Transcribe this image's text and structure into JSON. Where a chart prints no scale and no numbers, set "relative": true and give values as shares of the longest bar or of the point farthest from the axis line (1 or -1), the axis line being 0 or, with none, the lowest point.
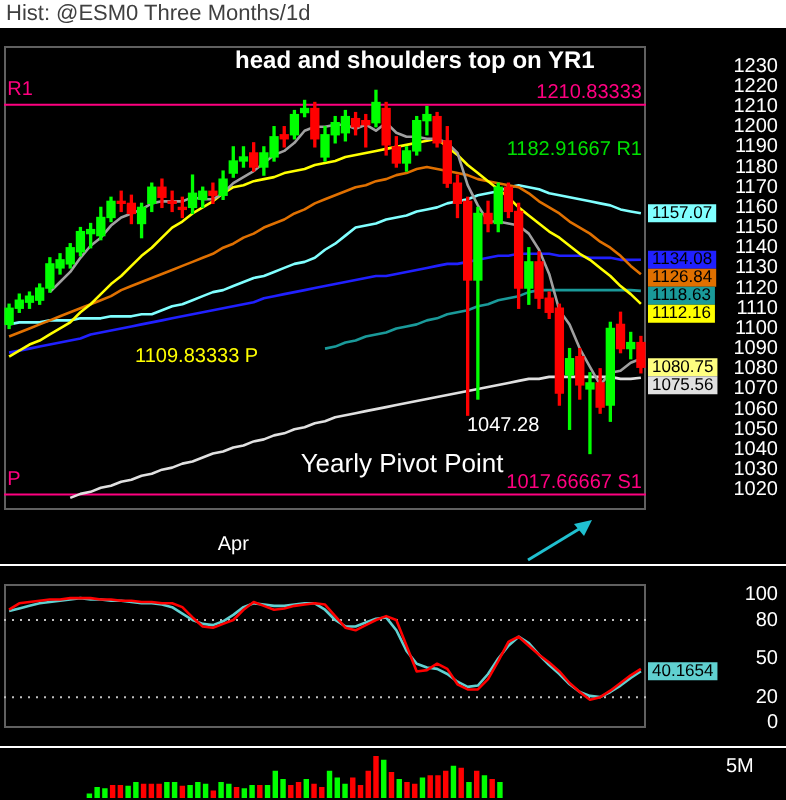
{
  "chart_data": [
    {
      "type": "candlestick",
      "title": "Hist: @ESM0 Three Months/1d",
      "categories": [
        null,
        null,
        null,
        null,
        null,
        null,
        null,
        null,
        null,
        null,
        null,
        null,
        null,
        null,
        null,
        null,
        null,
        null,
        null,
        null,
        null,
        null,
        "Apr",
        null,
        null,
        null,
        null,
        null,
        null,
        null,
        null,
        null,
        null,
        null,
        null,
        null,
        null,
        null,
        null,
        null,
        null,
        null,
        null,
        null,
        null,
        null,
        null,
        null,
        null,
        null,
        null,
        null,
        null,
        null,
        null,
        null,
        null,
        null,
        null,
        null,
        null,
        null,
        null
      ],
      "ohlc": [
        [
          1102,
          1112,
          1100,
          1110
        ],
        [
          1110,
          1117,
          1108,
          1114
        ],
        [
          1113,
          1118,
          1110,
          1116
        ],
        [
          1114,
          1122,
          1112,
          1120
        ],
        [
          1120,
          1135,
          1118,
          1132
        ],
        [
          1130,
          1137,
          1127,
          1134
        ],
        [
          1132,
          1142,
          1130,
          1140
        ],
        [
          1138,
          1150,
          1136,
          1148
        ],
        [
          1147,
          1152,
          1140,
          1149
        ],
        [
          1146,
          1160,
          1144,
          1155
        ],
        [
          1155,
          1165,
          1153,
          1163
        ],
        [
          1163,
          1168,
          1158,
          1162
        ],
        [
          1162,
          1166,
          1152,
          1157
        ],
        [
          1152,
          1162,
          1145,
          1160
        ],
        [
          1162,
          1172,
          1158,
          1170
        ],
        [
          1170,
          1174,
          1160,
          1165
        ],
        [
          1163,
          1168,
          1158,
          1162
        ],
        [
          1160,
          1165,
          1155,
          1159
        ],
        [
          1160,
          1176,
          1157,
          1167
        ],
        [
          1164,
          1170,
          1160,
          1168
        ],
        [
          1168,
          1172,
          1162,
          1166
        ],
        [
          1166,
          1178,
          1164,
          1174
        ],
        [
          1177,
          1190,
          1175,
          1183
        ],
        [
          1183,
          1190,
          1180,
          1185
        ],
        [
          1187,
          1192,
          1178,
          1180
        ],
        [
          1180,
          1190,
          1176,
          1187
        ],
        [
          1185,
          1200,
          1183,
          1195
        ],
        [
          1196,
          1200,
          1190,
          1194
        ],
        [
          1196,
          1208,
          1194,
          1206
        ],
        [
          1207,
          1213,
          1205,
          1209
        ],
        [
          1209,
          1212,
          1190,
          1194
        ],
        [
          1185,
          1200,
          1183,
          1196
        ],
        [
          1196,
          1205,
          1192,
          1202
        ],
        [
          1197,
          1208,
          1193,
          1205
        ],
        [
          1204,
          1207,
          1196,
          1200
        ],
        [
          1203,
          1206,
          1190,
          1201
        ],
        [
          1202,
          1218,
          1200,
          1212
        ],
        [
          1209,
          1212,
          1186,
          1191
        ],
        [
          1190,
          1195,
          1180,
          1182
        ],
        [
          1182,
          1190,
          1178,
          1188
        ],
        [
          1188,
          1205,
          1186,
          1203
        ],
        [
          1203,
          1210,
          1196,
          1206
        ],
        [
          1205,
          1207,
          1190,
          1192
        ],
        [
          1193,
          1200,
          1170,
          1172
        ],
        [
          1172,
          1176,
          1155,
          1162
        ],
        [
          1163,
          1165,
          1057,
          1124
        ],
        [
          1124,
          1160,
          1065,
          1157
        ],
        [
          1157,
          1163,
          1148,
          1152
        ],
        [
          1152,
          1172,
          1148,
          1170
        ],
        [
          1170,
          1172,
          1155,
          1158
        ],
        [
          1158,
          1162,
          1110,
          1120
        ],
        [
          1120,
          1140,
          1112,
          1133
        ],
        [
          1133,
          1138,
          1110,
          1115
        ],
        [
          1115,
          1118,
          1105,
          1108
        ],
        [
          1110,
          1112,
          1062,
          1068
        ],
        [
          1077,
          1090,
          1050,
          1085
        ],
        [
          1086,
          1090,
          1065,
          1072
        ],
        [
          1070,
          1078,
          1038,
          1073
        ],
        [
          1073,
          1080,
          1058,
          1061
        ],
        [
          1062,
          1103,
          1054,
          1100
        ],
        [
          1102,
          1108,
          1088,
          1090
        ],
        [
          1090,
          1098,
          1085,
          1093
        ],
        [
          1093,
          1096,
          1078,
          1080.75
        ]
      ],
      "colors": [
        "#00ff00",
        "#00ff00",
        "#00ff00",
        "#00ff00",
        "#00ff00",
        "#00ff00",
        "#00ff00",
        "#00ff00",
        "#00ff00",
        "#00ff00",
        "#00ff00",
        "#ff0000",
        "#ff0000",
        "#00ff00",
        "#00ff00",
        "#ff0000",
        "#ff0000",
        "#ff0000",
        "#00ff00",
        "#00ff00",
        "#ff0000",
        "#00ff00",
        "#00ff00",
        "#00ff00",
        "#ff0000",
        "#00ff00",
        "#00ff00",
        "#ff0000",
        "#00ff00",
        "#00ff00",
        "#ff0000",
        "#00ff00",
        "#00ff00",
        "#00ff00",
        "#ff0000",
        "#ff0000",
        "#00ff00",
        "#ff0000",
        "#ff0000",
        "#00ff00",
        "#00ff00",
        "#00ff00",
        "#ff0000",
        "#ff0000",
        "#ff0000",
        "#ff0000",
        "#00ff00",
        "#ff0000",
        "#00ff00",
        "#ff0000",
        "#ff0000",
        "#00ff00",
        "#ff0000",
        "#ff0000",
        "#ff0000",
        "#00ff00",
        "#ff0000",
        "#00ff00",
        "#ff0000",
        "#00ff00",
        "#ff0000",
        "#00ff00",
        "#ff0000"
      ],
      "series": [
        {
          "type": "line",
          "color": "#a0a0a0",
          "values": [
            null,
            null,
            null,
            null,
            1118,
            1123,
            1128,
            1135,
            1141,
            1145,
            1151,
            1155,
            1157,
            1159,
            1162,
            1163,
            1163,
            1163,
            1165,
            1164,
            1164,
            1167,
            1172,
            1175,
            1178,
            1182,
            1186,
            1188,
            1192,
            1198,
            1200,
            1200,
            1201,
            1201,
            1199,
            1201,
            1198,
            1202,
            1197,
            1195,
            1195,
            1194,
            1194,
            1192,
            1187,
            1171,
            1161,
            1153,
            1153,
            1152,
            1151,
            1147,
            1139,
            1127,
            1109,
            1102,
            1090,
            1081,
            1072,
            1078,
            1079,
            1083,
            1085
          ]
        },
        {
          "type": "line",
          "color": "#ffff00",
          "values": [
            1086,
            1089,
            1092,
            1094,
            1097,
            1100,
            1103,
            1108,
            1112,
            1117,
            1122,
            1126,
            1131,
            1136,
            1140,
            1145,
            1150,
            1153,
            1157,
            1160,
            1163,
            1167,
            1170,
            1171,
            1173,
            1174,
            1175,
            1177,
            1178,
            1179,
            1181,
            1182,
            1183,
            1185,
            1186,
            1187,
            1188,
            1189,
            1190,
            1191,
            1192,
            1193,
            1194,
            1190,
            1186,
            1181,
            1177,
            1173,
            1169,
            1165,
            1160,
            1156,
            1152,
            1148,
            1145,
            1141,
            1137,
            1134,
            1130,
            1126,
            1121,
            1117,
            1112.16
          ],
          "value_labels": [
            null,
            null,
            null,
            null,
            null,
            null,
            null,
            null,
            null,
            null,
            null,
            null,
            null,
            null,
            null,
            null,
            null,
            null,
            null,
            null,
            null,
            null,
            null,
            null,
            null,
            null,
            null,
            null,
            null,
            null,
            null,
            null,
            null,
            null,
            null,
            null,
            null,
            null,
            null,
            null,
            null,
            null,
            null,
            null,
            null,
            null,
            null,
            null,
            null,
            null,
            null,
            null,
            null,
            null,
            null,
            null,
            null,
            null,
            null,
            null,
            null,
            null,
            "1112.16"
          ]
        },
        {
          "type": "line",
          "color": "#e07000",
          "values": [
            1096,
            1098,
            1100,
            1102,
            1104,
            1106,
            1108,
            1110,
            1112,
            1114,
            1116,
            1119,
            1121,
            1123,
            1125,
            1127,
            1129,
            1131,
            1133,
            1135,
            1137,
            1140,
            1142,
            1145,
            1147,
            1150,
            1152,
            1154,
            1157,
            1159,
            1162,
            1164,
            1166,
            1168,
            1170,
            1171,
            1173,
            1174,
            1176,
            1177,
            1179,
            1180,
            1179,
            1178,
            1177,
            1176,
            1174,
            1173,
            1172,
            1171,
            1170,
            1167,
            1163,
            1160,
            1157,
            1153,
            1150,
            1147,
            1143,
            1140,
            1136,
            1131,
            1126.84
          ],
          "value_labels": [
            null,
            null,
            null,
            null,
            null,
            null,
            null,
            null,
            null,
            null,
            null,
            null,
            null,
            null,
            null,
            null,
            null,
            null,
            null,
            null,
            null,
            null,
            null,
            null,
            null,
            null,
            null,
            null,
            null,
            null,
            null,
            null,
            null,
            null,
            null,
            null,
            null,
            null,
            null,
            null,
            null,
            null,
            null,
            null,
            null,
            null,
            null,
            null,
            null,
            null,
            null,
            null,
            null,
            null,
            null,
            null,
            null,
            null,
            null,
            null,
            null,
            null,
            "1126.84"
          ]
        },
        {
          "type": "line",
          "color": "#80ffff",
          "values": [
            1102,
            1103,
            1103,
            1103,
            1104,
            1104,
            1104,
            1105,
            1105,
            1105,
            1106,
            1106,
            1106,
            1107,
            1107,
            1109,
            1111,
            1112,
            1114,
            1116,
            1118,
            1119,
            1121,
            1123,
            1125,
            1126,
            1128,
            1130,
            1132,
            1133,
            1135,
            1139,
            1142,
            1146,
            1150,
            1151,
            1152,
            1154,
            1155,
            1156,
            1158,
            1159,
            1160,
            1162,
            1163,
            1164,
            1166,
            1167,
            1168,
            1170,
            1171,
            1170,
            1169,
            1167,
            1166,
            1165,
            1164,
            1163,
            1162,
            1161,
            1159,
            1158,
            1157.07
          ],
          "value_labels": [
            null,
            null,
            null,
            null,
            null,
            null,
            null,
            null,
            null,
            null,
            null,
            null,
            null,
            null,
            null,
            null,
            null,
            null,
            null,
            null,
            null,
            null,
            null,
            null,
            null,
            null,
            null,
            null,
            null,
            null,
            null,
            null,
            null,
            null,
            null,
            null,
            null,
            null,
            null,
            null,
            null,
            null,
            null,
            null,
            null,
            null,
            null,
            null,
            null,
            null,
            null,
            null,
            null,
            null,
            null,
            null,
            null,
            null,
            null,
            null,
            null,
            null,
            "1157.07"
          ]
        },
        {
          "type": "line",
          "color": "#1a9a9a",
          "values": [
            null,
            null,
            null,
            null,
            null,
            null,
            null,
            null,
            null,
            null,
            null,
            null,
            null,
            null,
            null,
            null,
            null,
            null,
            null,
            null,
            null,
            null,
            null,
            null,
            null,
            null,
            null,
            null,
            null,
            null,
            null,
            1090,
            1091,
            1093,
            1094,
            1096,
            1097,
            1098,
            1100,
            1101,
            1102,
            1104,
            1105,
            1107,
            1108,
            1109,
            1111,
            1112,
            1114,
            1115,
            1116,
            1118,
            1119,
            1119,
            1119,
            1119,
            1119,
            1119,
            1119,
            1119,
            1119,
            1119,
            1118.63
          ],
          "value_labels": [
            null,
            null,
            null,
            null,
            null,
            null,
            null,
            null,
            null,
            null,
            null,
            null,
            null,
            null,
            null,
            null,
            null,
            null,
            null,
            null,
            null,
            null,
            null,
            null,
            null,
            null,
            null,
            null,
            null,
            null,
            null,
            null,
            null,
            null,
            null,
            null,
            null,
            null,
            null,
            null,
            null,
            null,
            null,
            null,
            null,
            null,
            null,
            null,
            null,
            null,
            null,
            null,
            null,
            null,
            null,
            null,
            null,
            null,
            null,
            null,
            null,
            null,
            "1118.63"
          ]
        },
        {
          "type": "line",
          "color": "#2020ff",
          "values": [
            1088,
            1089,
            1090,
            1091,
            1092,
            1093,
            1094,
            1095,
            1097,
            1098,
            1099,
            1100,
            1101,
            1102,
            1103,
            1104,
            1105,
            1106,
            1107,
            1108,
            1109,
            1110,
            1111,
            1112,
            1113,
            1115,
            1116,
            1117,
            1118,
            1119,
            1120,
            1121,
            1122,
            1123,
            1124,
            1125,
            1126,
            1126,
            1127,
            1128,
            1129,
            1130,
            1131,
            1132,
            1132,
            1133,
            1134,
            1135,
            1136,
            1136,
            1137,
            1137,
            1137,
            1137,
            1136,
            1136,
            1136,
            1135,
            1135,
            1135,
            1134,
            1134,
            1134.08
          ],
          "value_labels": [
            null,
            null,
            null,
            null,
            null,
            null,
            null,
            null,
            null,
            null,
            null,
            null,
            null,
            null,
            null,
            null,
            null,
            null,
            null,
            null,
            null,
            null,
            null,
            null,
            null,
            null,
            null,
            null,
            null,
            null,
            null,
            null,
            null,
            null,
            null,
            null,
            null,
            null,
            null,
            null,
            null,
            null,
            null,
            null,
            null,
            null,
            null,
            null,
            null,
            null,
            null,
            null,
            null,
            null,
            null,
            null,
            null,
            null,
            null,
            null,
            null,
            null,
            "1134.08"
          ]
        },
        {
          "type": "line",
          "color": "#e0e0e0",
          "values": [
            null,
            null,
            null,
            null,
            null,
            null,
            1016,
            1018,
            1019,
            1021,
            1022,
            1024,
            1025,
            1027,
            1028,
            1030,
            1031,
            1033,
            1034,
            1036,
            1038,
            1039,
            1041,
            1042,
            1044,
            1045,
            1047,
            1048,
            1050,
            1051,
            1053,
            1054,
            1056,
            1057,
            1058,
            1059,
            1060,
            1061,
            1062,
            1063,
            1064,
            1065,
            1066,
            1067,
            1068,
            1069,
            1070,
            1071,
            1072,
            1073,
            1074,
            1075,
            1075,
            1076,
            1076,
            1076,
            1076,
            1076,
            1076,
            1076,
            1075,
            1075,
            1075.56
          ],
          "value_labels": [
            null,
            null,
            null,
            null,
            null,
            null,
            null,
            null,
            null,
            null,
            null,
            null,
            null,
            null,
            null,
            null,
            null,
            null,
            null,
            null,
            null,
            null,
            null,
            null,
            null,
            null,
            null,
            null,
            null,
            null,
            null,
            null,
            null,
            null,
            null,
            null,
            null,
            null,
            null,
            null,
            null,
            null,
            null,
            null,
            null,
            null,
            null,
            null,
            null,
            null,
            null,
            null,
            null,
            null,
            null,
            null,
            null,
            null,
            null,
            null,
            null,
            null,
            "1075.56"
          ]
        }
      ],
      "ylim": [
        1010,
        1240
      ],
      "yticks": [
        1020,
        1030,
        1040,
        1050,
        1060,
        1070,
        1080,
        1090,
        1100,
        1110,
        1120,
        1130,
        1140,
        1150,
        1160,
        1170,
        1180,
        1190,
        1200,
        1210,
        1220,
        1230
      ],
      "ref_lines": [
        {
          "axis": "y",
          "value": 1210.83333,
          "label": "1210.83333",
          "color": "#ff0080"
        },
        {
          "axis": "y",
          "value": 1017.66667,
          "label": "1017.66667 S1",
          "color": "#ff0080"
        }
      ],
      "annotations": [
        "head and shoulders top on YR1",
        "Yearly Pivot Point",
        "R1",
        "P",
        "1182.91667 R1",
        "1109.83333 P",
        "1047.28",
        "1080.75"
      ]
    },
    {
      "type": "line",
      "tick_labels": "y",
      "categories": [
        null,
        null,
        null,
        null,
        null,
        null,
        null,
        null,
        null,
        null,
        null,
        null,
        null,
        null,
        null,
        null,
        null,
        null,
        null,
        null,
        null,
        null,
        null,
        null,
        null,
        null,
        null,
        null,
        null,
        null,
        null,
        null,
        null,
        null,
        null,
        null,
        null,
        null,
        null,
        null,
        null,
        null,
        null,
        null,
        null,
        null,
        null,
        null,
        null,
        null,
        null,
        null,
        null,
        null,
        null,
        null,
        null,
        null,
        null,
        null,
        null,
        null,
        null
      ],
      "series": [
        {
          "color": "#ff0000",
          "values": [
            88,
            93,
            94,
            95,
            96,
            96,
            97,
            97,
            97,
            96,
            96,
            95,
            95,
            94,
            94,
            93,
            93,
            90,
            82,
            75,
            74,
            77,
            80,
            88,
            94,
            91,
            88,
            89,
            91,
            92,
            93,
            92,
            83,
            74,
            72,
            76,
            80,
            83,
            80,
            60,
            40,
            41,
            46,
            42,
            30,
            26,
            26,
            34,
            48,
            63,
            67,
            60,
            53,
            47,
            40,
            31,
            24,
            18,
            20,
            25,
            31,
            37,
            42
          ]
        },
        {
          "color": "#60d0d0",
          "values": [
            87,
            89,
            91,
            93,
            94,
            95,
            96,
            97,
            96,
            96,
            95,
            95,
            94,
            93,
            93,
            92,
            90,
            85,
            80,
            77,
            76,
            79,
            84,
            90,
            93,
            92,
            91,
            91,
            92,
            93,
            93,
            88,
            80,
            75,
            75,
            78,
            81,
            82,
            72,
            56,
            46,
            43,
            42,
            38,
            32,
            28,
            29,
            38,
            50,
            60,
            67,
            62,
            53,
            45,
            38,
            30,
            24,
            21,
            20,
            24,
            29,
            35,
            40.1654
          ],
          "value_labels": [
            null,
            null,
            null,
            null,
            null,
            null,
            null,
            null,
            null,
            null,
            null,
            null,
            null,
            null,
            null,
            null,
            null,
            null,
            null,
            null,
            null,
            null,
            null,
            null,
            null,
            null,
            null,
            null,
            null,
            null,
            null,
            null,
            null,
            null,
            null,
            null,
            null,
            null,
            null,
            null,
            null,
            null,
            null,
            null,
            null,
            null,
            null,
            null,
            null,
            null,
            null,
            null,
            null,
            null,
            null,
            null,
            null,
            null,
            null,
            null,
            null,
            null,
            "40.1654"
          ]
        }
      ],
      "ylim": [
        -4,
        108
      ],
      "yticks": [
        0,
        20,
        50,
        80,
        100
      ],
      "ref_lines": [
        {
          "axis": "y",
          "value": 80,
          "color": "#c0c0c0",
          "line_style": "dotted"
        },
        {
          "axis": "y",
          "value": 20,
          "color": "#c0c0c0",
          "line_style": "dotted"
        }
      ]
    },
    {
      "type": "bar",
      "relative": true,
      "tick_labels": false,
      "categories": [
        null,
        null,
        null,
        null,
        null,
        null,
        null,
        null,
        null,
        null,
        null,
        null,
        null,
        null,
        null,
        null,
        null,
        null,
        null,
        null,
        null,
        null,
        null,
        null,
        null,
        null,
        null,
        null,
        null,
        null,
        null,
        null,
        null,
        null,
        null,
        null,
        null,
        null,
        null,
        null,
        null,
        null,
        null,
        null,
        null,
        null,
        null,
        null,
        null,
        null,
        null,
        null,
        null,
        null
      ],
      "values": [
        0.11,
        0.26,
        0.23,
        0.31,
        0.31,
        0.29,
        0.38,
        0.34,
        0.34,
        0.34,
        0.38,
        0.38,
        0.29,
        0.31,
        0.38,
        0.34,
        0.18,
        0.38,
        0.34,
        0.26,
        0.23,
        0.31,
        0.31,
        0.31,
        0.65,
        0.45,
        0.31,
        0.38,
        0.45,
        0.34,
        0.26,
        0.65,
        0.49,
        0.34,
        0.49,
        0.31,
        0.65,
        1,
        0.91,
        0.62,
        0.45,
        0.38,
        0.34,
        0.49,
        0.54,
        0.54,
        0.65,
        0.77,
        0.72,
        0.38,
        0.65,
        0.54,
        0.45,
        0.38
      ],
      "colors": [
        "#00ff00",
        "#00ff00",
        "#00ff00",
        "#ff0000",
        "#ff0000",
        "#00ff00",
        "#00ff00",
        "#ff0000",
        "#ff0000",
        "#ff0000",
        "#00ff00",
        "#00ff00",
        "#ff0000",
        "#00ff00",
        "#00ff00",
        "#00ff00",
        "#ff0000",
        "#00ff00",
        "#00ff00",
        "#ff0000",
        "#00ff00",
        "#00ff00",
        "#ff0000",
        "#00ff00",
        "#00ff00",
        "#00ff00",
        "#ff0000",
        "#ff0000",
        "#00ff00",
        "#ff0000",
        "#ff0000",
        "#00ff00",
        "#00ff00",
        "#00ff00",
        "#ff0000",
        "#ff0000",
        "#ff0000",
        "#ff0000",
        "#00ff00",
        "#ff0000",
        "#00ff00",
        "#ff0000",
        "#ff0000",
        "#00ff00",
        "#ff0000",
        "#ff0000",
        "#ff0000",
        "#00ff00",
        "#ff0000",
        "#00ff00",
        "#ff0000",
        "#00ff00",
        "#ff0000",
        "#00ff00"
      ],
      "annotations": [
        "5M"
      ]
    }
  ]
}
